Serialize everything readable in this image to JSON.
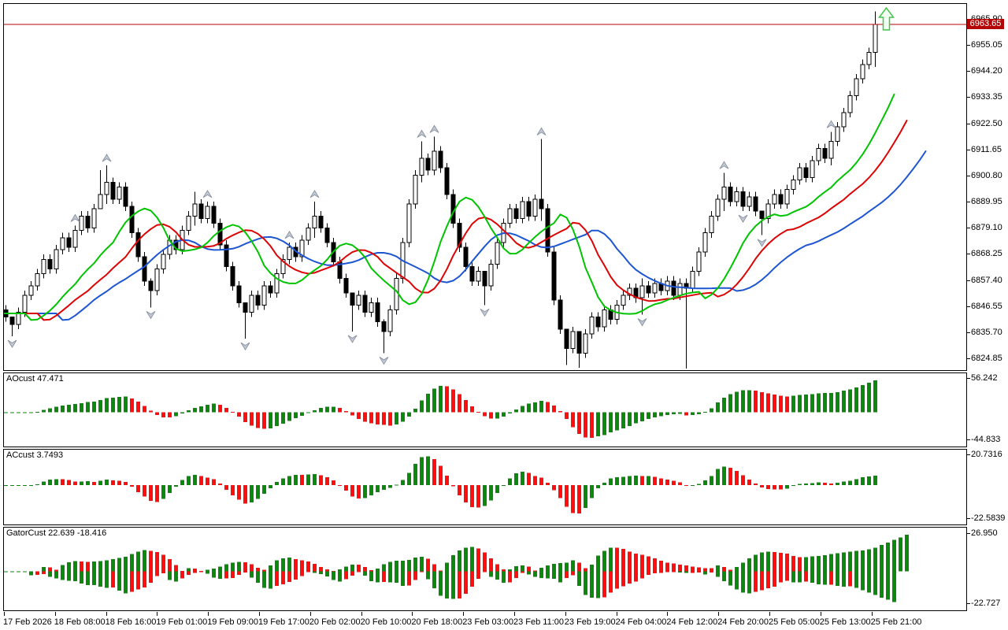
{
  "main_chart": {
    "price_line": {
      "value": 6963.65,
      "badge": "6963.65"
    },
    "price_axis": {
      "top_value": 6965.9,
      "bottom_value": 6824.85,
      "labels": [
        "6965.90",
        "6955.05",
        "6944.20",
        "6933.35",
        "6922.50",
        "6911.65",
        "6900.80",
        "6889.95",
        "6879.10",
        "6868.25",
        "6857.40",
        "6846.55",
        "6835.70",
        "6824.85"
      ]
    },
    "alligator": {
      "lips": {
        "period": 5,
        "shift": 3,
        "color": "#00c400"
      },
      "teeth": {
        "period": 8,
        "shift": 5,
        "color": "#dc0404"
      },
      "jaw": {
        "period": 13,
        "shift": 8,
        "color": "#1e56d2"
      }
    },
    "signal_arrow": {
      "direction": "up",
      "color": "#44c44c"
    }
  },
  "colors": {
    "bull_body": "#ffffff",
    "bear_body": "#000000",
    "candle_outline": "#000000",
    "hist_up": "#0d870d",
    "hist_down": "#fb0f0f",
    "price_line": "#b40404",
    "fractal_fill": "#c4cad4",
    "fractal_stroke": "#87909f"
  },
  "chart_data": {
    "type": "candlestick+oscillators",
    "symbol_timeframe": "H1",
    "time_labels": [
      "17 Feb 2026",
      "18 Feb 08:00",
      "18 Feb 16:00",
      "19 Feb 01:00",
      "19 Feb 09:00",
      "19 Feb 17:00",
      "20 Feb 02:00",
      "20 Feb 10:00",
      "20 Feb 18:00",
      "23 Feb 03:00",
      "23 Feb 11:00",
      "23 Feb 19:00",
      "24 Feb 04:00",
      "24 Feb 12:00",
      "24 Feb 20:00",
      "25 Feb 05:00",
      "25 Feb 13:00",
      "25 Feb 21:00"
    ],
    "candles": {
      "first_open": 6845,
      "default_wick": 2,
      "closes": [
        6842,
        6839,
        6844,
        6851,
        6855,
        6860,
        6866,
        6862,
        6870,
        6875,
        6871,
        6878,
        6884,
        6879,
        6887,
        6893,
        6898,
        6891,
        6896,
        6888,
        6877,
        6867,
        6857,
        6853,
        6862,
        6868,
        6874,
        6870,
        6878,
        6884,
        6889,
        6883,
        6888,
        6881,
        6872,
        6863,
        6855,
        6848,
        6844,
        6851,
        6847,
        6855,
        6852,
        6860,
        6866,
        6871,
        6867,
        6874,
        6879,
        6884,
        6879,
        6873,
        6865,
        6858,
        6852,
        6847,
        6851,
        6844,
        6848,
        6840,
        6836,
        6845,
        6858,
        6873,
        6889,
        6901,
        6908,
        6903,
        6911,
        6904,
        6893,
        6881,
        6871,
        6863,
        6857,
        6861,
        6855,
        6864,
        6873,
        6881,
        6887,
        6883,
        6890,
        6884,
        6891,
        6887,
        6869,
        6849,
        6837,
        6829,
        6836,
        6827,
        6835,
        6842,
        6838,
        6845,
        6841,
        6847,
        6851,
        6854,
        6850,
        6855,
        6852,
        6856,
        6853,
        6857,
        6851,
        6856,
        6854,
        6861,
        6869,
        6877,
        6884,
        6891,
        6896,
        6890,
        6894,
        6888,
        6892,
        6886,
        6883,
        6889,
        6893,
        6889,
        6895,
        6899,
        6904,
        6900,
        6907,
        6912,
        6908,
        6915,
        6921,
        6927,
        6934,
        6941,
        6947,
        6952,
        6963.65
      ],
      "wick_overrides": {
        "1": [
          6842,
          6834
        ],
        "15": [
          6903,
          6888
        ],
        "16": [
          6905,
          6889
        ],
        "23": [
          6858,
          6846
        ],
        "30": [
          6894,
          6880
        ],
        "38": [
          6848,
          6833
        ],
        "49": [
          6890,
          6875
        ],
        "55": [
          6852,
          6836
        ],
        "60": [
          6841,
          6827
        ],
        "66": [
          6915,
          6898
        ],
        "68": [
          6917,
          6901
        ],
        "76": [
          6859,
          6847
        ],
        "85": [
          6916,
          6882
        ],
        "89": [
          6832,
          6822
        ],
        "91": [
          6830,
          6821
        ],
        "101": [
          6858,
          6843
        ],
        "108": [
          6858,
          6820
        ],
        "114": [
          6902,
          6886
        ],
        "120": [
          6886,
          6876
        ],
        "131": [
          6919,
          6905
        ],
        "138": [
          6969,
          6946
        ]
      }
    },
    "fractals": {
      "up": [
        11,
        16,
        32,
        45,
        49,
        66,
        68,
        85,
        114,
        131
      ],
      "down": [
        1,
        23,
        38,
        55,
        60,
        76,
        89,
        91,
        101,
        108,
        117,
        120
      ]
    },
    "panes": [
      {
        "id": "ao",
        "title": "AOcust 47.471",
        "scale_top": "56.242",
        "scale_bottom": "-44.833",
        "fast": 5,
        "slow": 34
      },
      {
        "id": "ac",
        "title": "ACcust 3.7493",
        "scale_top": "20.7316",
        "scale_bottom": "-22.5839",
        "smooth": 5
      },
      {
        "id": "gator",
        "title": "GatorCust 22.639 -18.416",
        "scale_top": "26.950",
        "scale_bottom": "-22.727"
      }
    ]
  }
}
